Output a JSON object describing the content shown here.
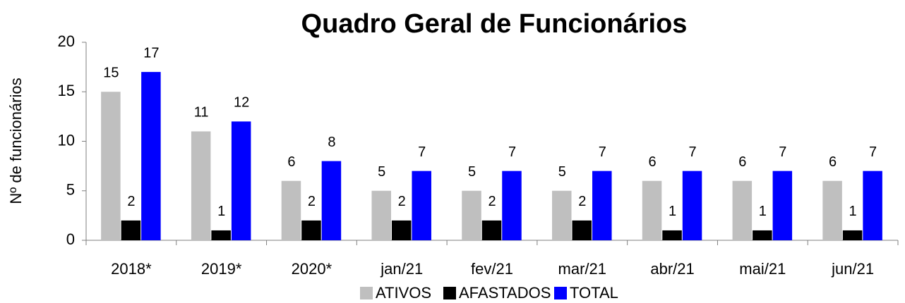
{
  "chart_data": {
    "type": "bar",
    "title": "Quadro Geral de Funcionários",
    "y_label": "Nº de funcionários",
    "categories": [
      "2018*",
      "2019*",
      "2020*",
      "jan/21",
      "fev/21",
      "mar/21",
      "abr/21",
      "mai/21",
      "jun/21"
    ],
    "series": [
      {
        "name": "ATIVOS",
        "color": "#bfbfbf",
        "values": [
          15,
          11,
          6,
          5,
          5,
          5,
          6,
          6,
          6
        ]
      },
      {
        "name": "AFASTADOS",
        "color": "#000000",
        "values": [
          2,
          1,
          2,
          2,
          2,
          2,
          1,
          1,
          1
        ]
      },
      {
        "name": "TOTAL",
        "color": "#0000ff",
        "values": [
          17,
          12,
          8,
          7,
          7,
          7,
          7,
          7,
          7
        ]
      }
    ],
    "ylim": [
      0,
      20
    ],
    "yticks": [
      0,
      5,
      10,
      15,
      20
    ],
    "grid": false,
    "legend": "bottom"
  }
}
